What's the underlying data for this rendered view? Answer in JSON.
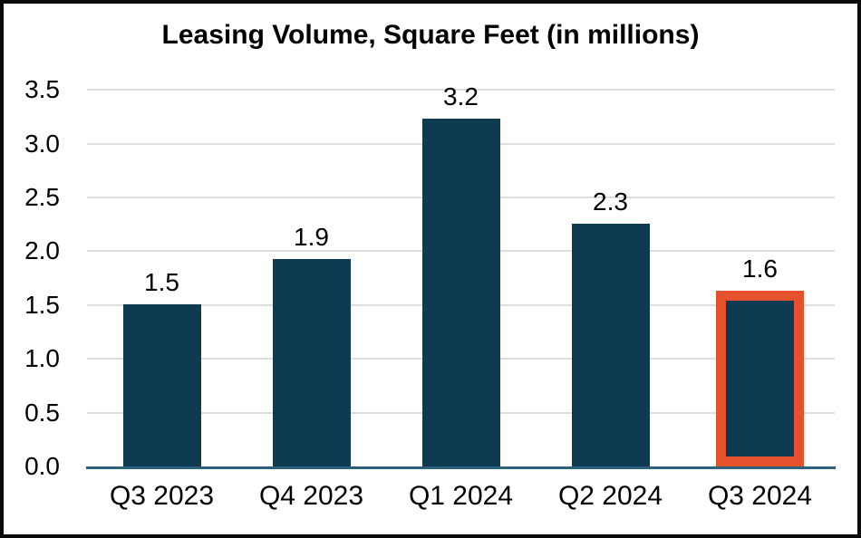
{
  "chart_data": {
    "type": "bar",
    "title": "Leasing Volume, Square Feet (in millions)",
    "categories": [
      "Q3 2023",
      "Q4 2023",
      "Q1 2024",
      "Q2 2024",
      "Q3 2024"
    ],
    "values": [
      1.5,
      1.9,
      3.2,
      2.3,
      1.6
    ],
    "data_labels": [
      "1.5",
      "1.9",
      "3.2",
      "2.3",
      "1.6"
    ],
    "bar_heights_estimated_units": [
      1.51,
      1.93,
      3.23,
      2.26,
      1.63
    ],
    "xlabel": "",
    "ylabel": "",
    "ylim": [
      0,
      3.5
    ],
    "ytick_step": 0.5,
    "yticks": [
      "0.0",
      "0.5",
      "1.0",
      "1.5",
      "2.0",
      "2.5",
      "3.0",
      "3.5"
    ],
    "grid": "horizontal-only",
    "legend": "none",
    "highlight": {
      "index": 4,
      "category": "Q3 2024",
      "style": "thick orange border around bar"
    },
    "colors": {
      "bar_fill": "#0E3A52",
      "highlight_border": "#E5512D",
      "axis_line": "#2E6179",
      "gridline": "#DEDEDE",
      "text": "#000000",
      "background": "#FFFFFF",
      "frame_border": "#0A0A0A"
    }
  }
}
